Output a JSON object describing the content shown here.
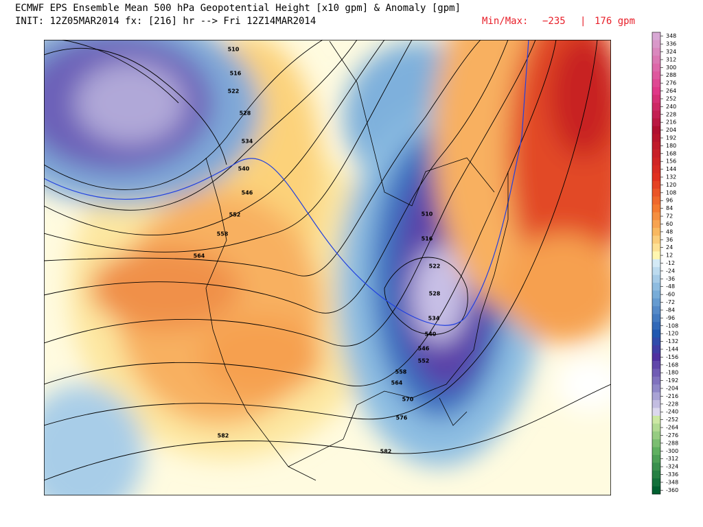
{
  "header": {
    "title": "ECMWF EPS Ensemble Mean 500 hPa Geopotential Height [x10 gpm] & Anomaly [gpm]",
    "init": "INIT: 12Z05MAR2014 fx: [216] hr --> Fri 12Z14MAR2014",
    "minmax_label": "Min/Max:",
    "min": "−235",
    "separator": "|",
    "max": "176 gpm"
  },
  "contour_labels": [
    510,
    516,
    522,
    528,
    534,
    540,
    546,
    552,
    558,
    564,
    582,
    582,
    576,
    570,
    564,
    558,
    552,
    546,
    540,
    534,
    528,
    522,
    516,
    510
  ],
  "colorbar": {
    "levels": [
      348,
      336,
      324,
      312,
      300,
      288,
      276,
      264,
      252,
      240,
      228,
      216,
      204,
      192,
      180,
      168,
      156,
      144,
      132,
      120,
      108,
      96,
      84,
      72,
      60,
      48,
      36,
      24,
      12,
      -12,
      -24,
      -36,
      -48,
      -60,
      -72,
      -84,
      -96,
      -108,
      -120,
      -132,
      -144,
      -156,
      -168,
      -180,
      -192,
      -204,
      -216,
      -228,
      -240,
      -252,
      -264,
      -276,
      -288,
      -300,
      -312,
      -324,
      -336,
      -348,
      -360
    ]
  }
}
